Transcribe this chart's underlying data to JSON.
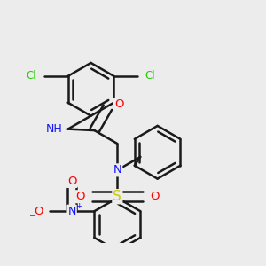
{
  "bg_color": "#ececec",
  "colors": {
    "N": "#1414ff",
    "O": "#ff0000",
    "Cl": "#22cc00",
    "S": "#cccc00",
    "C": "#1a1a1a"
  },
  "bond_width": 1.8,
  "font_size": 9.5
}
